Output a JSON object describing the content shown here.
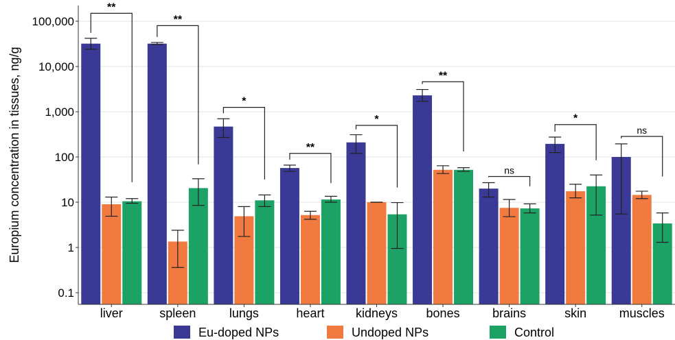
{
  "chart_data": {
    "type": "bar",
    "ylabel": "Europium concentration in tissues, ng/g",
    "yscale": "log",
    "ylim": [
      0.1,
      100000
    ],
    "ytick_values": [
      0.1,
      1,
      10,
      100,
      1000,
      10000,
      100000
    ],
    "ytick_labels": [
      "0.1",
      "1",
      "10",
      "100",
      "1,000",
      "10,000",
      "100,000"
    ],
    "grid": true,
    "legend_position": "bottom",
    "categories": [
      "liver",
      "spleen",
      "lungs",
      "heart",
      "kidneys",
      "bones",
      "brains",
      "skin",
      "muscles"
    ],
    "series": [
      {
        "name": "Eu-doped NPs",
        "color": "#3a3a96",
        "values": [
          32000,
          32000,
          470,
          57,
          210,
          2300,
          20,
          195,
          100
        ],
        "err_low": [
          24000,
          30500,
          270,
          48,
          120,
          1700,
          13,
          125,
          5.5
        ],
        "err_high": [
          42000,
          34000,
          700,
          66,
          310,
          3100,
          27,
          275,
          195
        ]
      },
      {
        "name": "Undoped NPs",
        "color": "#f07a3f",
        "values": [
          9,
          1.35,
          4.9,
          5.2,
          10,
          52,
          7.5,
          17.5,
          14.5
        ],
        "err_low": [
          4.9,
          0.36,
          1.75,
          4.2,
          10,
          43,
          4.8,
          12.5,
          12
        ],
        "err_high": [
          13,
          2.4,
          8,
          6.3,
          10,
          64,
          11.5,
          25,
          17.5
        ]
      },
      {
        "name": "Control",
        "color": "#1ca265",
        "values": [
          10.5,
          20.5,
          11,
          11.5,
          5.4,
          52,
          7.3,
          22.5,
          3.4
        ],
        "err_low": [
          9.5,
          8.5,
          8,
          10,
          0.95,
          48,
          5.8,
          5.2,
          1.3
        ],
        "err_high": [
          12,
          33,
          14.5,
          13.5,
          9.8,
          58,
          9.2,
          40,
          5.8
        ]
      }
    ],
    "significance": [
      {
        "category": "liver",
        "label": "**",
        "top": 150000,
        "left_foot": 42000,
        "right_foot": 21
      },
      {
        "category": "spleen",
        "label": "**",
        "top": 80000,
        "left_foot": 34000,
        "right_foot": 52
      },
      {
        "category": "lungs",
        "label": "*",
        "top": 1250,
        "left_foot": 700,
        "right_foot": 24
      },
      {
        "category": "heart",
        "label": "**",
        "top": 120,
        "left_foot": 66,
        "right_foot": 20
      },
      {
        "category": "kidneys",
        "label": "*",
        "top": 500,
        "left_foot": 310,
        "right_foot": 16
      },
      {
        "category": "bones",
        "label": "**",
        "top": 4600,
        "left_foot": 3100,
        "right_foot": 100
      },
      {
        "category": "brains",
        "label": "ns",
        "top": 37,
        "left_foot": 27,
        "right_foot": 17
      },
      {
        "category": "skin",
        "label": "*",
        "top": 520,
        "left_foot": 275,
        "right_foot": 64
      },
      {
        "category": "muscles",
        "label": "ns",
        "top": 285,
        "left_foot": 195,
        "right_foot": 28
      }
    ]
  }
}
